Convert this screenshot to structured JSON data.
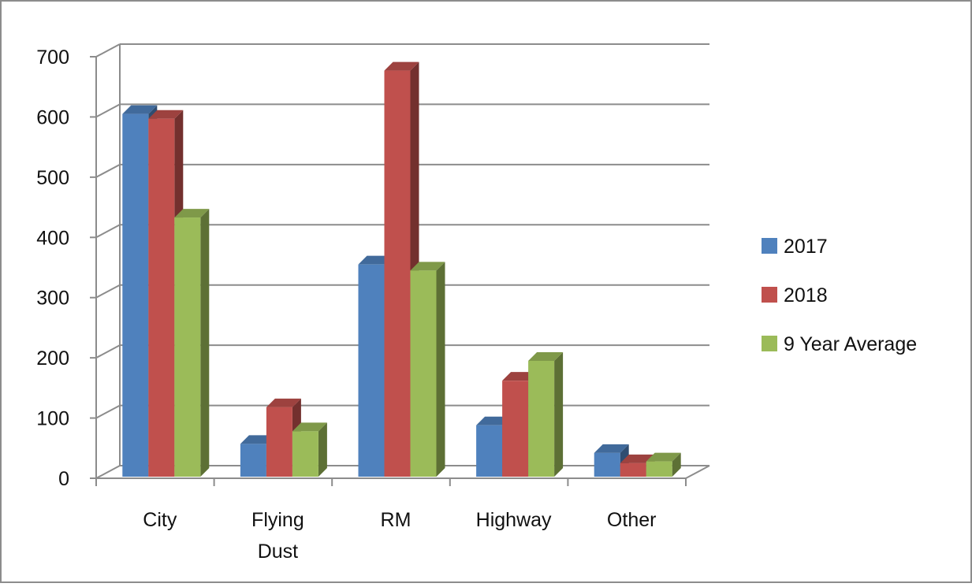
{
  "chart_data": {
    "type": "bar",
    "title": "",
    "xlabel": "",
    "ylabel": "",
    "ylim": [
      0,
      700
    ],
    "yticks": [
      0,
      100,
      200,
      300,
      400,
      500,
      600,
      700
    ],
    "grid": true,
    "three_d": true,
    "legend_position": "right",
    "categories": [
      [
        "City"
      ],
      [
        "Flying",
        "Dust"
      ],
      [
        "RM"
      ],
      [
        "Highway"
      ],
      [
        "Other"
      ]
    ],
    "series": [
      {
        "name": "2017",
        "color": "#4f81bd",
        "values": [
          605,
          57,
          355,
          88,
          42
        ]
      },
      {
        "name": "2018",
        "color": "#c0504d",
        "values": [
          597,
          118,
          677,
          162,
          25
        ]
      },
      {
        "name": "9 Year Average",
        "color": "#9bbb59",
        "values": [
          433,
          78,
          345,
          195,
          28
        ]
      }
    ]
  }
}
